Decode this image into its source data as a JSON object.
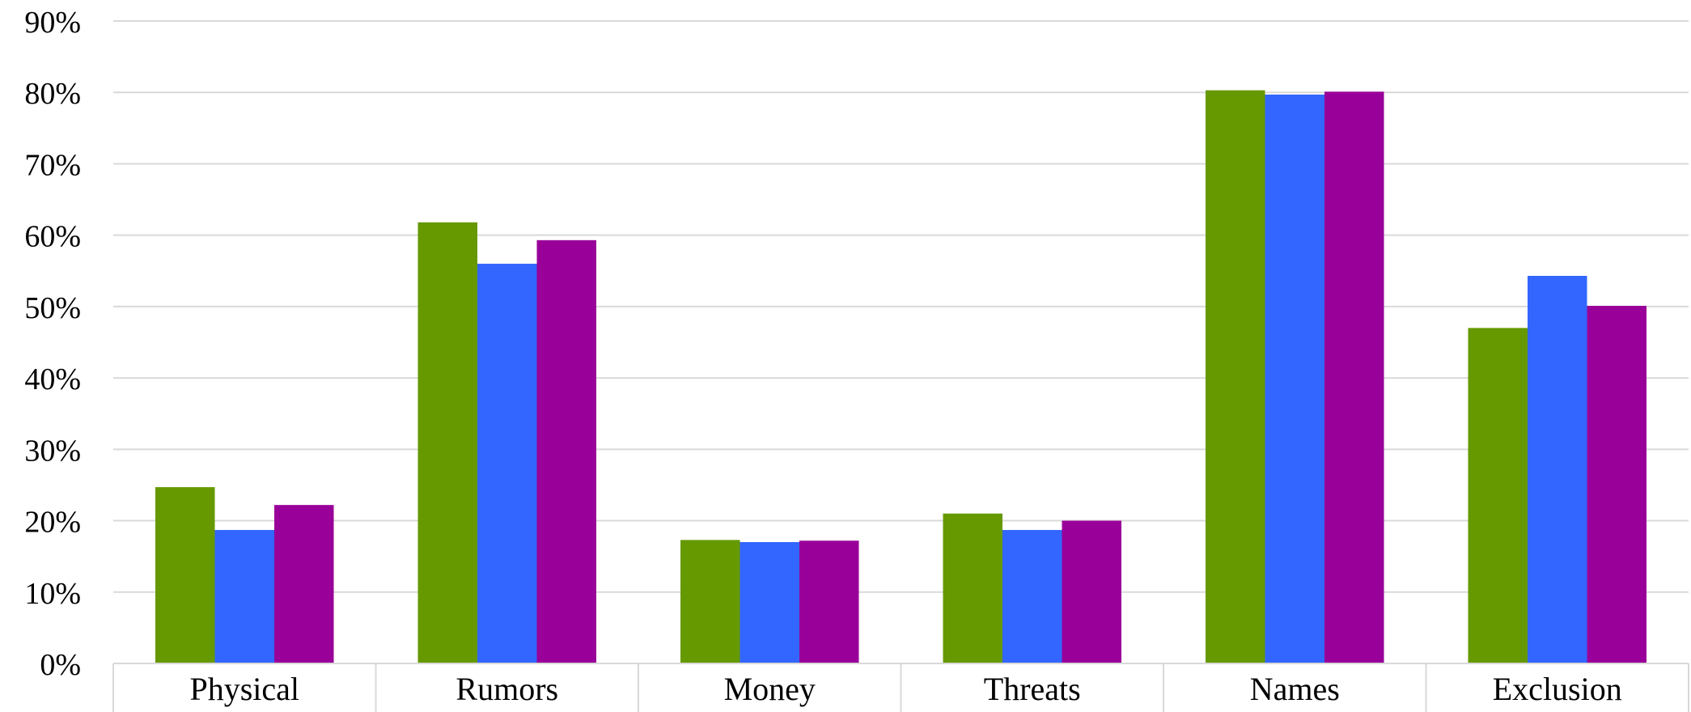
{
  "chart_data": {
    "type": "bar",
    "categories": [
      "Physical",
      "Rumors",
      "Money",
      "Threats",
      "Names",
      "Exclusion"
    ],
    "series": [
      {
        "values": [
          24.7,
          61.8,
          17.3,
          21.0,
          80.3,
          47.0
        ],
        "color": "#669900"
      },
      {
        "values": [
          18.7,
          56.0,
          17.0,
          18.7,
          79.7,
          54.3
        ],
        "color": "#3366ff"
      },
      {
        "values": [
          22.2,
          59.3,
          17.2,
          20.0,
          80.1,
          50.1
        ],
        "color": "#990099"
      }
    ],
    "y_ticks": [
      "0%",
      "10%",
      "20%",
      "30%",
      "40%",
      "50%",
      "60%",
      "70%",
      "80%",
      "90%"
    ],
    "ylim": [
      0,
      90
    ],
    "ytick_step": 10,
    "grid": true,
    "legend": "none",
    "title": "",
    "xlabel": "",
    "ylabel": ""
  }
}
